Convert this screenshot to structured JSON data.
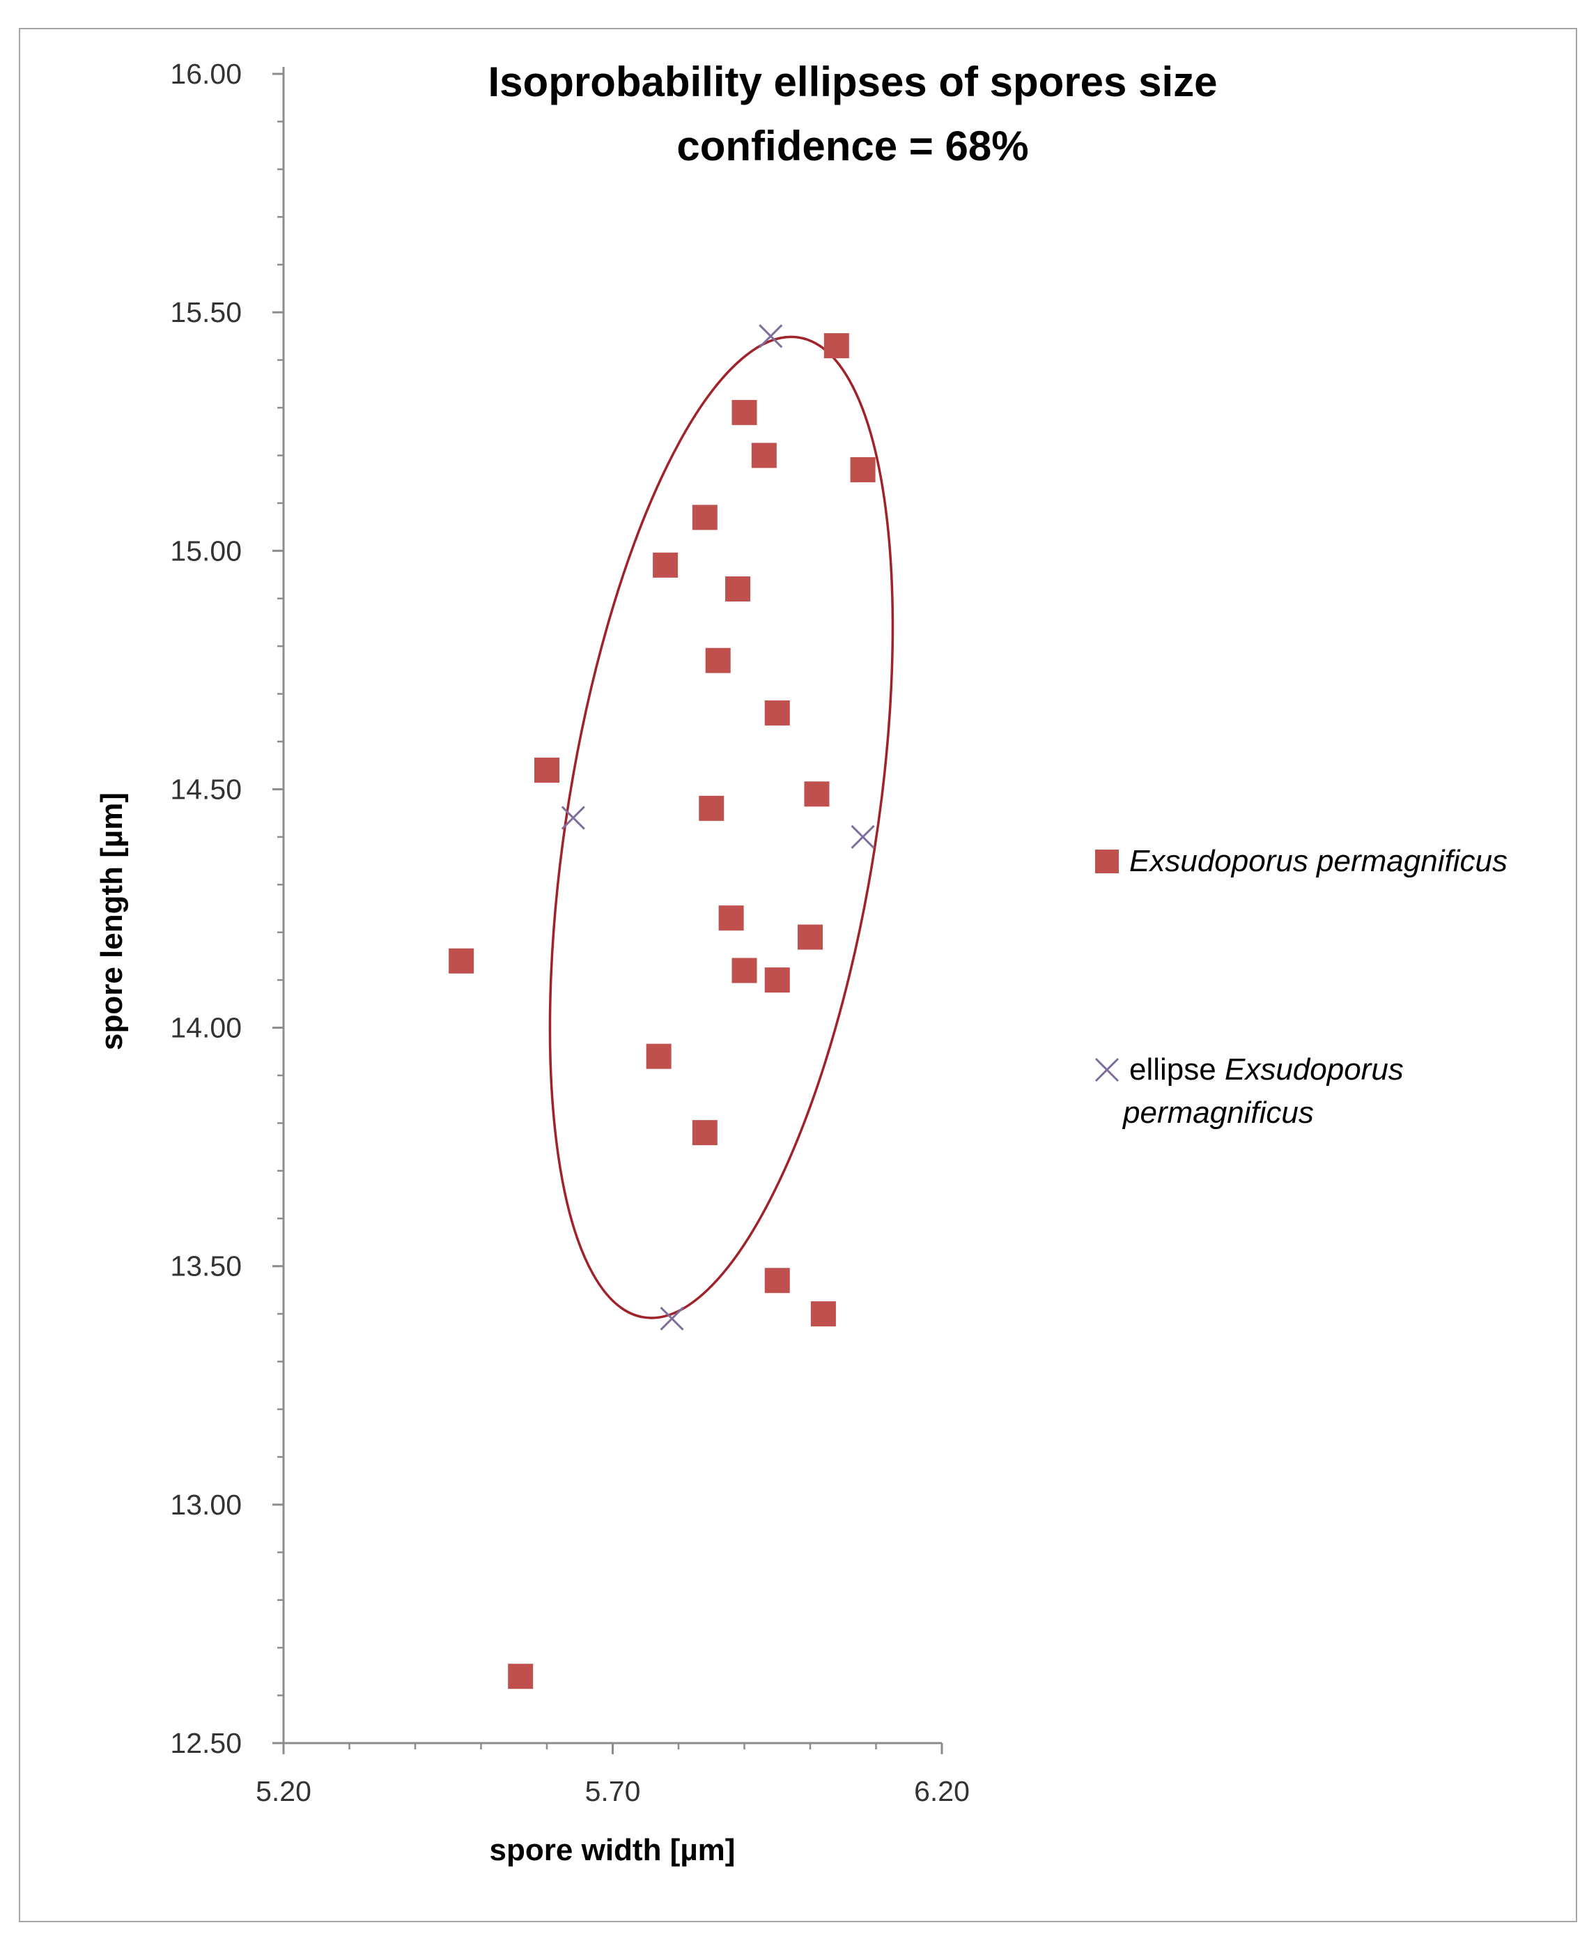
{
  "chart_data": {
    "type": "scatter",
    "title": [
      "Isoprobability ellipses of spores size",
      "confidence = 68%"
    ],
    "xlabel": "spore width [µm]",
    "ylabel": "spore length [µm]",
    "xlim": [
      5.2,
      6.2
    ],
    "ylim": [
      12.5,
      16.0
    ],
    "x_ticks": [
      5.2,
      5.7,
      6.2
    ],
    "x_tick_labels": [
      "5.20",
      "5.70",
      "6.20"
    ],
    "y_ticks": [
      12.5,
      13.0,
      13.5,
      14.0,
      14.5,
      15.0,
      15.5,
      16.0
    ],
    "y_tick_labels": [
      "12.50",
      "13.00",
      "13.50",
      "14.00",
      "14.50",
      "15.00",
      "15.50",
      "16.00"
    ],
    "x_minor_step": 0.1,
    "y_minor_step": 0.1,
    "grid": false,
    "legend_position": "right",
    "series": [
      {
        "name_parts": [
          {
            "text": "Exsudoporus permagnificus",
            "italic": true
          }
        ],
        "marker": "square",
        "color": "#c0504d",
        "points": [
          [
            6.04,
            15.43
          ],
          [
            5.9,
            15.29
          ],
          [
            5.93,
            15.2
          ],
          [
            6.08,
            15.17
          ],
          [
            5.84,
            15.07
          ],
          [
            5.78,
            14.97
          ],
          [
            5.89,
            14.92
          ],
          [
            5.86,
            14.77
          ],
          [
            5.95,
            14.66
          ],
          [
            5.6,
            14.54
          ],
          [
            6.01,
            14.49
          ],
          [
            5.85,
            14.46
          ],
          [
            5.88,
            14.23
          ],
          [
            6.0,
            14.19
          ],
          [
            5.47,
            14.14
          ],
          [
            5.9,
            14.12
          ],
          [
            5.95,
            14.1
          ],
          [
            5.77,
            13.94
          ],
          [
            5.84,
            13.78
          ],
          [
            5.95,
            13.47
          ],
          [
            6.02,
            13.4
          ],
          [
            5.56,
            12.64
          ]
        ]
      },
      {
        "name_parts": [
          {
            "text": "ellipse ",
            "italic": false
          },
          {
            "text": "Exsudoporus permagnificus",
            "italic": true
          }
        ],
        "marker": "x",
        "color": "#7f6e9c",
        "points": [
          [
            5.94,
            15.45
          ],
          [
            5.64,
            14.44
          ],
          [
            6.08,
            14.4
          ],
          [
            5.79,
            13.39
          ]
        ]
      }
    ],
    "ellipse": {
      "color": "#a0232a",
      "center": [
        5.865,
        14.42
      ],
      "semi_axes": [
        0.235,
        1.04
      ]
    }
  }
}
